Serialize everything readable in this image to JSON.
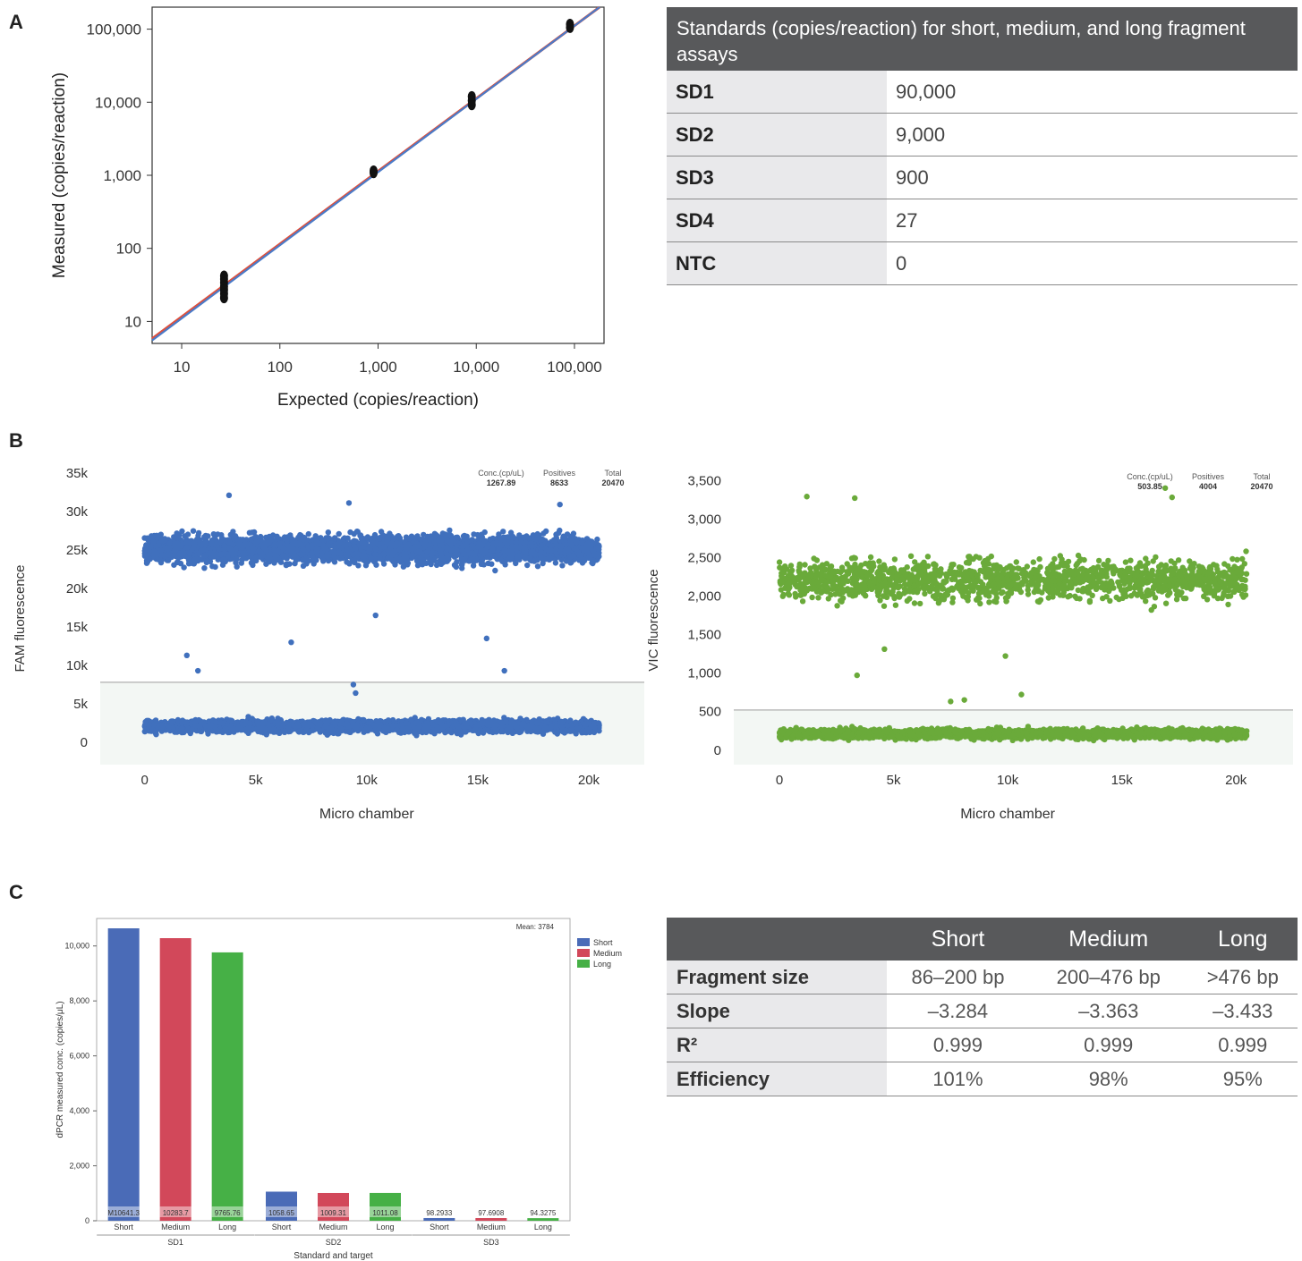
{
  "panels": {
    "a": "A",
    "b": "B",
    "c": "C"
  },
  "chart_data": [
    {
      "type": "scatter",
      "id": "panel-a-standard-curve",
      "xlabel": "Expected (copies/reaction)",
      "ylabel": "Measured (copies/reaction)",
      "xscale": "log",
      "yscale": "log",
      "xlim": [
        5,
        200000
      ],
      "ylim": [
        5,
        200000
      ],
      "xticks": [
        10,
        100,
        1000,
        10000,
        100000
      ],
      "xtick_labels": [
        "10",
        "100",
        "1,000",
        "10,000",
        "100,000"
      ],
      "yticks": [
        10,
        100,
        1000,
        10000,
        100000
      ],
      "ytick_labels": [
        "10",
        "100",
        "1,000",
        "10,000",
        "100,000"
      ],
      "points": [
        {
          "x": 27,
          "y": 42
        },
        {
          "x": 27,
          "y": 38
        },
        {
          "x": 27,
          "y": 34
        },
        {
          "x": 27,
          "y": 30
        },
        {
          "x": 27,
          "y": 27
        },
        {
          "x": 27,
          "y": 24
        },
        {
          "x": 27,
          "y": 21
        },
        {
          "x": 900,
          "y": 1150
        },
        {
          "x": 900,
          "y": 1080
        },
        {
          "x": 9000,
          "y": 12000
        },
        {
          "x": 9000,
          "y": 10500
        },
        {
          "x": 9000,
          "y": 9200
        },
        {
          "x": 90000,
          "y": 117000
        },
        {
          "x": 90000,
          "y": 105000
        }
      ],
      "fit_lines": [
        {
          "color": "#e0503c",
          "x": [
            5,
            180000
          ],
          "y": [
            5.8,
            200000
          ]
        },
        {
          "color": "#4a7bc8",
          "x": [
            5,
            180000
          ],
          "y": [
            5.5,
            200000
          ]
        }
      ],
      "grid": false
    },
    {
      "type": "scatter",
      "id": "panel-b-fam",
      "xlabel": "Micro chamber",
      "ylabel": "FAM fluorescence",
      "xlim": [
        -2000,
        22500
      ],
      "ylim": [
        -3000,
        35000
      ],
      "xticks": [
        0,
        5000,
        10000,
        15000,
        20000
      ],
      "xtick_labels": [
        "0",
        "5k",
        "10k",
        "15k",
        "20k"
      ],
      "yticks": [
        0,
        5000,
        10000,
        15000,
        20000,
        25000,
        30000,
        35000
      ],
      "ytick_labels": [
        "0",
        "5k",
        "10k",
        "15k",
        "20k",
        "25k",
        "30k",
        "35k"
      ],
      "threshold": 7700,
      "color": "#4070bd",
      "positive_band": {
        "x": [
          0,
          20470
        ],
        "y": [
          18000,
          31000
        ],
        "center": 25000
      },
      "negative_band": {
        "x": [
          0,
          20470
        ],
        "y": [
          0,
          5800
        ],
        "center": 2000
      },
      "outliers": [
        {
          "x": 3800,
          "y": 32000
        },
        {
          "x": 9200,
          "y": 31000
        },
        {
          "x": 18700,
          "y": 30800
        },
        {
          "x": 10400,
          "y": 16400
        },
        {
          "x": 1900,
          "y": 11200
        },
        {
          "x": 6600,
          "y": 12900
        },
        {
          "x": 15400,
          "y": 13400
        },
        {
          "x": 2400,
          "y": 9200
        },
        {
          "x": 16200,
          "y": 9200
        },
        {
          "x": 9400,
          "y": 7400
        },
        {
          "x": 9500,
          "y": 6300
        }
      ],
      "stats_labels": [
        "Conc.(cp/uL)",
        "Positives",
        "Total"
      ],
      "stats_values": [
        "1267.89",
        "8633",
        "20470"
      ]
    },
    {
      "type": "scatter",
      "id": "panel-b-vic",
      "xlabel": "Micro chamber",
      "ylabel": "VIC fluorescence",
      "xlim": [
        -2000,
        22500
      ],
      "ylim": [
        -200,
        3550
      ],
      "xticks": [
        0,
        5000,
        10000,
        15000,
        20000
      ],
      "xtick_labels": [
        "0",
        "5k",
        "10k",
        "15k",
        "20k"
      ],
      "yticks": [
        0,
        500,
        1000,
        1500,
        2000,
        2500,
        3000,
        3500
      ],
      "ytick_labels": [
        "0",
        "500",
        "1,000",
        "1,500",
        "2,000",
        "2,500",
        "3,000",
        "3,500"
      ],
      "threshold": 510,
      "color": "#6aaa3a",
      "positive_band": {
        "x": [
          0,
          20470
        ],
        "y": [
          1300,
          3200
        ],
        "center": 2200
      },
      "negative_band": {
        "x": [
          0,
          20470
        ],
        "y": [
          20,
          470
        ],
        "center": 200
      },
      "outliers": [
        {
          "x": 16900,
          "y": 3390
        },
        {
          "x": 1200,
          "y": 3280
        },
        {
          "x": 3300,
          "y": 3260
        },
        {
          "x": 17200,
          "y": 3270
        },
        {
          "x": 3400,
          "y": 960
        },
        {
          "x": 7500,
          "y": 620
        },
        {
          "x": 8100,
          "y": 640
        },
        {
          "x": 10600,
          "y": 710
        },
        {
          "x": 9900,
          "y": 1210
        },
        {
          "x": 4600,
          "y": 1300
        }
      ],
      "stats_labels": [
        "Conc.(cp/uL)",
        "Positives",
        "Total"
      ],
      "stats_values": [
        "503.85",
        "4004",
        "20470"
      ]
    },
    {
      "type": "bar",
      "id": "panel-c-bars",
      "xlabel": "Standard and target",
      "ylabel": "dPCR measured conc. (copies/μL)",
      "ylim": [
        0,
        11000
      ],
      "yticks": [
        0,
        2000,
        4000,
        6000,
        8000,
        10000
      ],
      "ytick_labels": [
        "0",
        "2,000",
        "4,000",
        "6,000",
        "8,000",
        "10,000"
      ],
      "groups": [
        "SD1",
        "SD2",
        "SD3"
      ],
      "categories": [
        "Short",
        "Medium",
        "Long"
      ],
      "series": [
        {
          "name": "Short",
          "color": "#4a6bb7",
          "values": [
            10641.3,
            1058.65,
            98.2933
          ],
          "labels": [
            "M10641.3",
            "1058.65",
            "98.2933"
          ]
        },
        {
          "name": "Medium",
          "color": "#d2485a",
          "values": [
            10283.7,
            1009.31,
            97.6908
          ],
          "labels": [
            "10283.7",
            "1009.31",
            "97.6908"
          ]
        },
        {
          "name": "Long",
          "color": "#46b046",
          "values": [
            9765.76,
            1011.08,
            94.3275
          ],
          "labels": [
            "9765.76",
            "1011.08",
            "94.3275"
          ]
        }
      ],
      "annotation": "Mean: 3784",
      "legend": "top-right",
      "grid": false
    }
  ],
  "standards_table": {
    "header": "Standards (copies/reaction) for short, medium, and long fragment assays",
    "rows": [
      {
        "name": "SD1",
        "value": "90,000"
      },
      {
        "name": "SD2",
        "value": "9,000"
      },
      {
        "name": "SD3",
        "value": "900"
      },
      {
        "name": "SD4",
        "value": "27"
      },
      {
        "name": "NTC",
        "value": "0"
      }
    ]
  },
  "fragment_table": {
    "columns": [
      "",
      "Short",
      "Medium",
      "Long"
    ],
    "rows": [
      {
        "name": "Fragment size",
        "values": [
          "86–200 bp",
          "200–476 bp",
          ">476 bp"
        ]
      },
      {
        "name": "Slope",
        "values": [
          "–3.284",
          "–3.363",
          "–3.433"
        ]
      },
      {
        "name": "R²",
        "values": [
          "0.999",
          "0.999",
          "0.999"
        ]
      },
      {
        "name": "Efficiency",
        "values": [
          "101%",
          "98%",
          "95%"
        ]
      }
    ]
  }
}
